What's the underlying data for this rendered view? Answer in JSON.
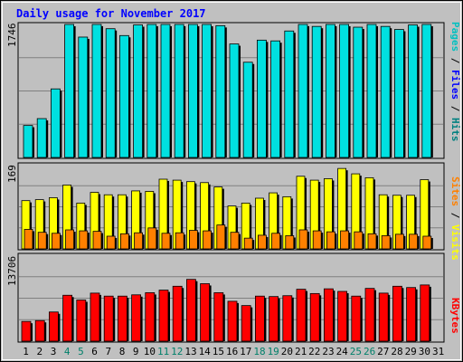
{
  "chart_data": {
    "type": "bar",
    "title": "Daily usage for November 2017",
    "categories": [
      "1",
      "2",
      "3",
      "4",
      "5",
      "6",
      "7",
      "8",
      "9",
      "10",
      "11",
      "12",
      "13",
      "14",
      "15",
      "16",
      "17",
      "18",
      "19",
      "20",
      "21",
      "22",
      "23",
      "24",
      "25",
      "26",
      "27",
      "28",
      "29",
      "30",
      "31"
    ],
    "weekend_days": [
      4,
      5,
      11,
      12,
      18,
      19,
      25,
      26
    ],
    "colors": {
      "background": "#c0c0c0",
      "title": "#0000ff",
      "hits": "#00e0e0",
      "hits_label": "#008080",
      "files": "#00c0ff",
      "files_label": "#0000ff",
      "pages": "#00e0e0",
      "pages_label": "#00c0c0",
      "visits": "#ffff00",
      "visits_label": "#ffff00",
      "sites": "#ff8000",
      "sites_label": "#ff8000",
      "kbytes": "#ff0000",
      "kbytes_label": "#ff0000",
      "weekday_label": "#000000",
      "weekend_label": "#00806a"
    },
    "panels": [
      {
        "id": "hits",
        "axis_label": "1746",
        "ymax": 1746,
        "legend": [
          {
            "text": "Pages",
            "color_key": "pages_label"
          },
          {
            "text": "Files",
            "color_key": "files_label"
          },
          {
            "text": "Hits",
            "color_key": "hits_label"
          }
        ],
        "series": [
          {
            "name": "Hits",
            "color_key": "hits",
            "values": [
              0,
              0,
              0,
              0,
              0,
              0,
              0,
              0,
              0,
              0,
              0,
              0,
              0,
              0,
              0,
              0,
              0,
              0,
              0,
              0,
              0,
              0,
              0,
              0,
              0,
              0,
              0,
              0,
              0,
              0,
              0
            ]
          },
          {
            "name": "Files",
            "color_key": "files",
            "values": [
              0,
              0,
              0,
              0,
              0,
              0,
              0,
              0,
              0,
              0,
              0,
              0,
              0,
              0,
              0,
              0,
              0,
              0,
              0,
              0,
              0,
              0,
              0,
              0,
              0,
              0,
              0,
              0,
              0,
              0,
              0
            ]
          },
          {
            "name": "Pages",
            "color_key": "pages",
            "values": [
              420,
              510,
              900,
              1770,
              1580,
              1760,
              1690,
              1600,
              1740,
              1770,
              1780,
              1820,
              1940,
              1950,
              1730,
              1490,
              1250,
              1540,
              1530,
              1660,
              1790,
              1720,
              1750,
              1890,
              1710,
              1760,
              1720,
              1680,
              1740,
              1780,
              0
            ]
          }
        ]
      },
      {
        "id": "visits",
        "axis_label": "169",
        "ymax": 169,
        "legend": [
          {
            "text": "Sites",
            "color_key": "sites_label"
          },
          {
            "text": "Visits",
            "color_key": "visits_label"
          }
        ],
        "series": [
          {
            "name": "Visits",
            "color_key": "visits",
            "values": [
              99,
              101,
              105,
              131,
              94,
              116,
              111,
              111,
              119,
              118,
              143,
              141,
              138,
              136,
              127,
              88,
              94,
              104,
              115,
              107,
              149,
              141,
              144,
              165,
              154,
              146,
              111,
              110,
              110,
              142,
              0
            ]
          },
          {
            "name": "Sites",
            "color_key": "sites",
            "values": [
              40,
              34,
              32,
              39,
              37,
              36,
              26,
              31,
              33,
              43,
              32,
              33,
              38,
              37,
              49,
              34,
              22,
              28,
              32,
              27,
              39,
              37,
              35,
              37,
              35,
              31,
              27,
              30,
              30,
              26,
              0
            ]
          }
        ]
      },
      {
        "id": "kbytes",
        "axis_label": "13706",
        "ymax": 13706,
        "legend": [
          {
            "text": "KBytes",
            "color_key": "kbytes_label"
          }
        ],
        "series": [
          {
            "name": "KBytes",
            "color_key": "kbytes",
            "values": [
              4600,
              4800,
              6800,
              10700,
              9600,
              11200,
              10500,
              10500,
              10800,
              11300,
              11900,
              12800,
              14400,
              13400,
              11300,
              9300,
              8300,
              10500,
              10400,
              10600,
              12100,
              11100,
              12200,
              11600,
              10500,
              12300,
              11200,
              12800,
              12500,
              13100,
              0
            ]
          }
        ]
      }
    ]
  }
}
